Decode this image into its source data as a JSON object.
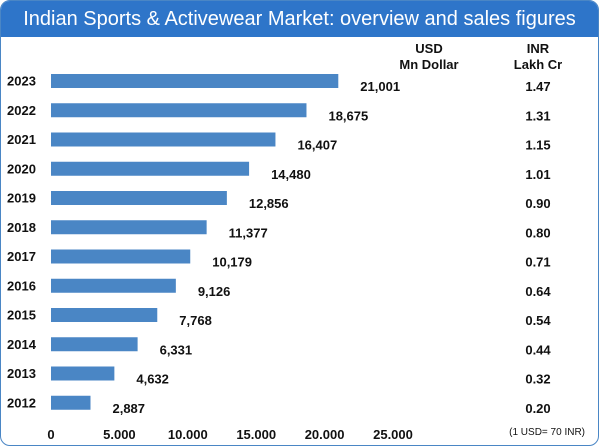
{
  "title": "Indian Sports & Activewear Market: overview and sales figures",
  "headers": {
    "usd_line1": "USD",
    "usd_line2": "Mn Dollar",
    "inr_line1": "INR",
    "inr_line2": "Lakh Cr"
  },
  "note": "(1 USD= 70 INR)",
  "colors": {
    "title_bg": "#2e75c9",
    "bar": "#4a86c5",
    "border": "#4a86c5"
  },
  "chart_data": {
    "type": "bar",
    "orientation": "horizontal",
    "categories": [
      "2023",
      "2022",
      "2021",
      "2020",
      "2019",
      "2018",
      "2017",
      "2016",
      "2015",
      "2014",
      "2013",
      "2012"
    ],
    "values": [
      21001,
      18675,
      16407,
      14480,
      12856,
      11377,
      10179,
      9126,
      7768,
      6331,
      4632,
      2887
    ],
    "value_labels": [
      "21,001",
      "18,675",
      "16,407",
      "14,480",
      "12,856",
      "11,377",
      "10,179",
      "9,126",
      "7,768",
      "6,331",
      "4,632",
      "2,887"
    ],
    "inr_values": [
      "1.47",
      "1.31",
      "1.15",
      "1.01",
      "0.90",
      "0.80",
      "0.71",
      "0.64",
      "0.54",
      "0.44",
      "0.32",
      "0.20"
    ],
    "xlim": [
      0,
      25000
    ],
    "xticks": [
      0,
      5000,
      10000,
      15000,
      20000,
      25000
    ],
    "xtick_labels": [
      "0",
      "5.000",
      "10.000",
      "15.000",
      "20.000",
      "25.000"
    ],
    "grid": false,
    "legend": "none"
  }
}
